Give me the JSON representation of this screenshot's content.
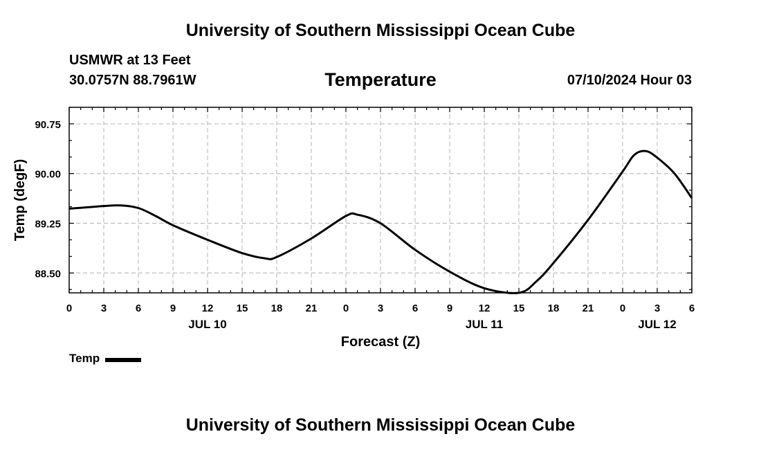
{
  "header": {
    "title": "University of Southern Mississippi Ocean Cube",
    "station": "USMWR at 13 Feet",
    "coords": "30.0757N  88.7961W",
    "subtitle": "Temperature",
    "datetime": "07/10/2024 Hour 03"
  },
  "footer": {
    "title": "University of Southern Mississippi Ocean Cube"
  },
  "legend": {
    "label": "Temp"
  },
  "colors": {
    "line": "#000000",
    "grid": "#bdbdbd",
    "background": "#ffffff"
  },
  "chart_data": {
    "type": "line",
    "title": "Temperature",
    "xlabel": "Forecast (Z)",
    "ylabel": "Temp (degF)",
    "xlim": [
      0,
      54
    ],
    "ylim": [
      88.2,
      91.0
    ],
    "yticks": [
      88.5,
      89.25,
      90.0,
      90.75
    ],
    "ytick_labels": [
      "88.50",
      "89.25",
      "90.00",
      "90.75"
    ],
    "xticks": [
      0,
      3,
      6,
      9,
      12,
      15,
      18,
      21,
      24,
      27,
      30,
      33,
      36,
      39,
      42,
      45,
      48,
      51,
      54
    ],
    "xtick_labels": [
      "0",
      "3",
      "6",
      "9",
      "12",
      "15",
      "18",
      "21",
      "0",
      "3",
      "6",
      "9",
      "12",
      "15",
      "18",
      "21",
      "0",
      "3",
      "6"
    ],
    "date_labels": [
      {
        "x": 12,
        "label": "JUL 10"
      },
      {
        "x": 36,
        "label": "JUL 11"
      },
      {
        "x": 51,
        "label": "JUL 12"
      }
    ],
    "grid": true,
    "series": [
      {
        "name": "Temp",
        "x": [
          0,
          1.5,
          3,
          4.5,
          6,
          7.5,
          9,
          12,
          15,
          17,
          18,
          21,
          24,
          25,
          27,
          30,
          33,
          36,
          39,
          40.5,
          42,
          45,
          48,
          49,
          50,
          51,
          52.5,
          54
        ],
        "y": [
          89.47,
          89.49,
          89.51,
          89.52,
          89.48,
          89.36,
          89.22,
          89.0,
          88.8,
          88.72,
          88.74,
          89.02,
          89.36,
          89.38,
          89.25,
          88.85,
          88.52,
          88.27,
          88.2,
          88.37,
          88.65,
          89.3,
          90.03,
          90.28,
          90.34,
          90.24,
          90.0,
          89.63
        ]
      }
    ]
  }
}
